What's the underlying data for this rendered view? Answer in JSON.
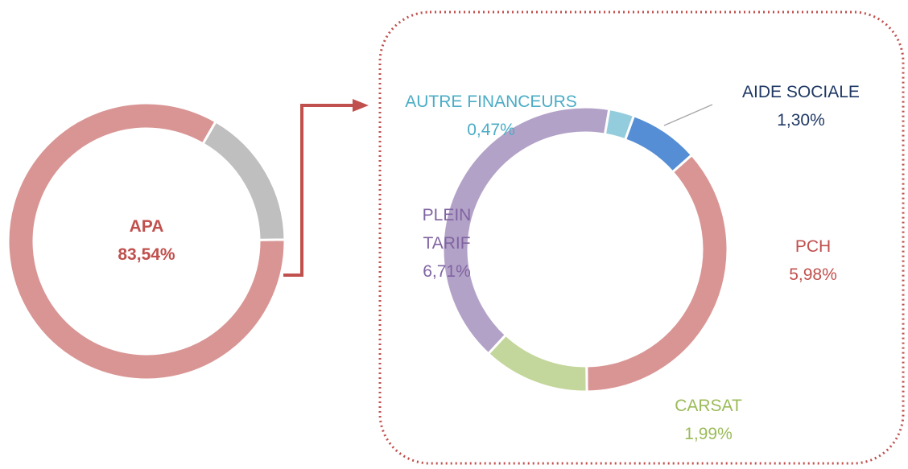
{
  "chart_data": [
    {
      "type": "pie",
      "donut": true,
      "categories": [
        "APA",
        null
      ],
      "values": [
        83.54,
        16.46
      ],
      "value_labels": [
        "83,54%",
        null
      ],
      "colors": [
        "#d99594",
        "#bfbfbf"
      ],
      "label_colors": [
        "#c0504d",
        null
      ]
    },
    {
      "type": "pie",
      "donut": true,
      "categories": [
        "AIDE SOCIALE",
        "PCH",
        "CARSAT",
        "PLEIN TARIF",
        "AUTRE FINANCEURS"
      ],
      "values": [
        1.3,
        5.98,
        1.99,
        6.71,
        0.47
      ],
      "value_labels": [
        "1,30%",
        "5,98%",
        "1,99%",
        "6,71%",
        "0,47%"
      ],
      "colors": [
        "#558ed5",
        "#d99594",
        "#c3d69b",
        "#b3a2c7",
        "#93cddd"
      ],
      "label_colors": [
        "#1f3864",
        "#c0504d",
        "#9bbb59",
        "#8064a2",
        "#4bacc6"
      ]
    }
  ]
}
